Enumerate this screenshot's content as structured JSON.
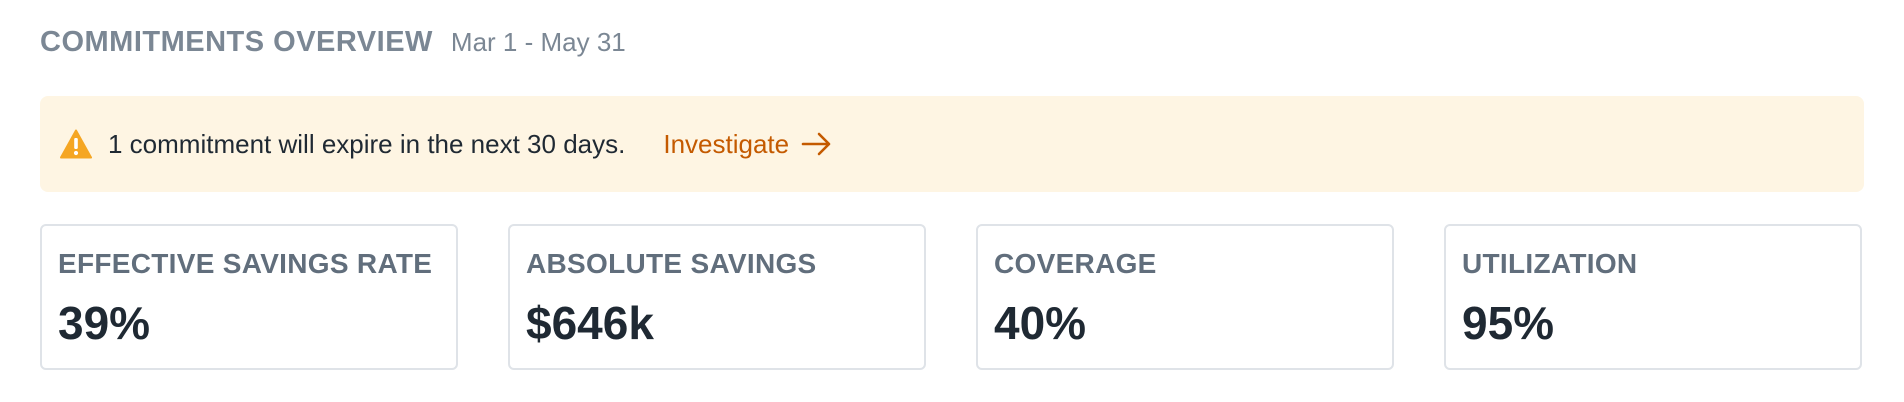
{
  "header": {
    "title": "COMMITMENTS OVERVIEW",
    "date_range": "Mar 1 - May 31"
  },
  "alert": {
    "icon": "warning-icon",
    "message": "1 commitment will expire in the next 30 days.",
    "link_label": "Investigate",
    "link_icon": "arrow-right-icon",
    "background_color": "#fef5e3",
    "accent_color": "#c45a00",
    "icon_color": "#f5a623"
  },
  "metrics": [
    {
      "label": "EFFECTIVE SAVINGS RATE",
      "value": "39%"
    },
    {
      "label": "ABSOLUTE SAVINGS",
      "value": "$646k"
    },
    {
      "label": "COVERAGE",
      "value": "40%"
    },
    {
      "label": "UTILIZATION",
      "value": "95%"
    }
  ]
}
